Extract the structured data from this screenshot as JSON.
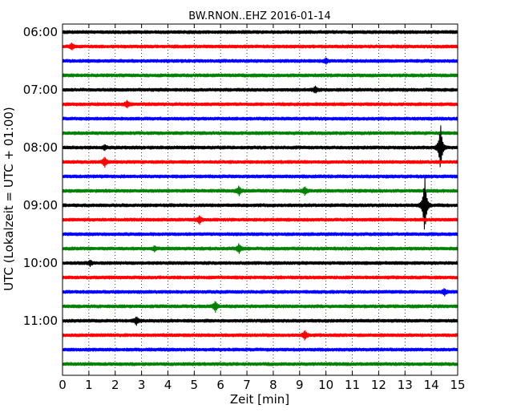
{
  "chart_data": {
    "type": "line",
    "title": "BW.RNON..EHZ 2016-01-14",
    "xlabel": "Zeit  [min]",
    "ylabel": "UTC (Lokalzeit = UTC + 01:00)",
    "xlim": [
      0,
      15
    ],
    "x_ticks": [
      "0",
      "1",
      "2",
      "3",
      "4",
      "5",
      "6",
      "7",
      "8",
      "9",
      "10",
      "11",
      "12",
      "13",
      "14",
      "15"
    ],
    "y_tick_labels": [
      "06:00",
      "07:00",
      "08:00",
      "09:00",
      "10:00",
      "11:00"
    ],
    "grid": "vertical dotted at each minute",
    "trace_interval_minutes": 15,
    "colors": [
      "#000000",
      "#ff0000",
      "#0000ff",
      "#008000"
    ],
    "series": [
      {
        "start": "06:00",
        "events": []
      },
      {
        "start": "06:15",
        "events": [
          {
            "minute": 0.35,
            "amplitude": 0.2
          }
        ]
      },
      {
        "start": "06:30",
        "events": [
          {
            "minute": 10.0,
            "amplitude": 0.15
          }
        ]
      },
      {
        "start": "06:45",
        "events": []
      },
      {
        "start": "07:00",
        "events": [
          {
            "minute": 9.6,
            "amplitude": 0.2
          }
        ]
      },
      {
        "start": "07:15",
        "events": [
          {
            "minute": 2.45,
            "amplitude": 0.2
          }
        ]
      },
      {
        "start": "07:30",
        "events": []
      },
      {
        "start": "07:45",
        "events": []
      },
      {
        "start": "08:00",
        "events": [
          {
            "minute": 14.35,
            "amplitude": 1.6
          },
          {
            "minute": 1.6,
            "amplitude": 0.15
          }
        ]
      },
      {
        "start": "08:15",
        "events": [
          {
            "minute": 1.6,
            "amplitude": 0.3
          }
        ]
      },
      {
        "start": "08:30",
        "events": []
      },
      {
        "start": "08:45",
        "events": [
          {
            "minute": 6.7,
            "amplitude": 0.3
          },
          {
            "minute": 9.2,
            "amplitude": 0.25
          }
        ]
      },
      {
        "start": "09:00",
        "events": [
          {
            "minute": 13.75,
            "amplitude": 2.0
          }
        ]
      },
      {
        "start": "09:15",
        "events": [
          {
            "minute": 5.2,
            "amplitude": 0.25
          }
        ]
      },
      {
        "start": "09:30",
        "events": []
      },
      {
        "start": "09:45",
        "events": [
          {
            "minute": 6.7,
            "amplitude": 0.3
          },
          {
            "minute": 3.5,
            "amplitude": 0.15
          }
        ]
      },
      {
        "start": "10:00",
        "events": [
          {
            "minute": 1.05,
            "amplitude": 0.15
          }
        ]
      },
      {
        "start": "10:15",
        "events": []
      },
      {
        "start": "10:30",
        "events": [
          {
            "minute": 14.5,
            "amplitude": 0.2
          }
        ]
      },
      {
        "start": "10:45",
        "events": [
          {
            "minute": 5.8,
            "amplitude": 0.35
          }
        ]
      },
      {
        "start": "11:00",
        "events": [
          {
            "minute": 2.8,
            "amplitude": 0.25
          }
        ]
      },
      {
        "start": "11:15",
        "events": [
          {
            "minute": 9.2,
            "amplitude": 0.3
          }
        ]
      },
      {
        "start": "11:30",
        "events": []
      },
      {
        "start": "11:45",
        "events": []
      }
    ]
  }
}
